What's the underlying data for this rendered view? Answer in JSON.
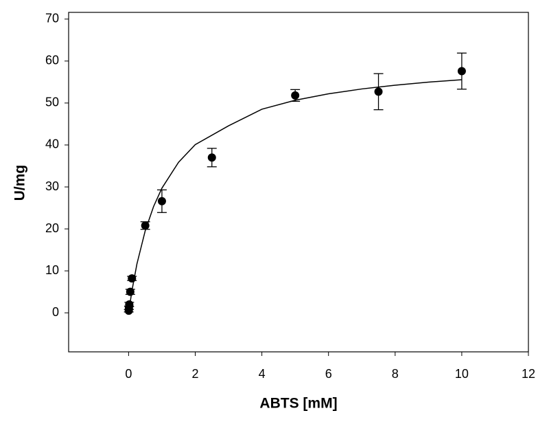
{
  "chart_data": {
    "type": "scatter",
    "xlabel": "ABTS [mM]",
    "ylabel": "U/mg",
    "color": "#000000",
    "x": [
      0.005,
      0.01,
      0.02,
      0.05,
      0.1,
      0.5,
      1,
      2.5,
      5,
      7.5,
      10
    ],
    "values": [
      0.5,
      1.2,
      2,
      5,
      8.2,
      20.8,
      26.6,
      37,
      51.8,
      52.7,
      57.6
    ],
    "errors": [
      0.3,
      0.4,
      0.5,
      0.6,
      0.5,
      0.9,
      2.7,
      2.2,
      1.4,
      4.3,
      4.3
    ],
    "fit": {
      "x": [
        0,
        0.1,
        0.25,
        0.5,
        0.75,
        1,
        1.5,
        2,
        3,
        4,
        5,
        6,
        7,
        8,
        9,
        10
      ],
      "values": [
        0,
        5.26,
        11.65,
        19.59,
        25.34,
        29.71,
        35.89,
        40.07,
        44.57,
        48.52,
        50.66,
        52.19,
        53.35,
        54.25,
        54.97,
        55.56
      ]
    },
    "xlim": [
      -1.8,
      12
    ],
    "ylim": [
      -9.3,
      71.6
    ],
    "xticks": [
      0,
      2,
      4,
      6,
      8,
      10,
      12
    ],
    "yticks": [
      0,
      10,
      20,
      30,
      40,
      50,
      60,
      70
    ]
  }
}
